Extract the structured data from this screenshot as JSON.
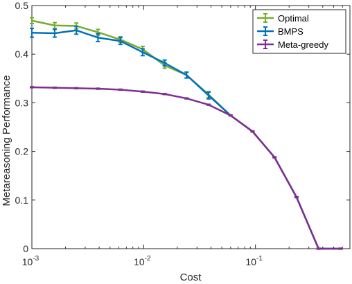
{
  "chart_data": {
    "type": "line",
    "title": "",
    "xlabel": "Cost",
    "ylabel": "Metareasoning Performance",
    "xscale": "log",
    "xlim": [
      0.001,
      0.7
    ],
    "ylim": [
      0,
      0.5
    ],
    "xticks": [
      {
        "value": 0.001,
        "base": "10",
        "exp": "-3"
      },
      {
        "value": 0.01,
        "base": "10",
        "exp": "-2"
      },
      {
        "value": 0.1,
        "base": "10",
        "exp": "-1"
      }
    ],
    "yticks": [
      {
        "value": 0,
        "label": "0"
      },
      {
        "value": 0.1,
        "label": "0.1"
      },
      {
        "value": 0.2,
        "label": "0.2"
      },
      {
        "value": 0.3,
        "label": "0.3"
      },
      {
        "value": 0.4,
        "label": "0.4"
      },
      {
        "value": 0.5,
        "label": "0.5"
      }
    ],
    "grid": false,
    "legend_position": "top-right",
    "series": [
      {
        "name": "Optimal",
        "color": "#77ac30",
        "x": [
          0.001,
          0.0016,
          0.0025,
          0.0039,
          0.0062,
          0.0098,
          0.0154,
          0.0242,
          0.0381,
          0.0599,
          0.0942,
          0.148,
          0.233,
          0.367,
          0.577
        ],
        "y": [
          0.469,
          0.459,
          0.458,
          0.445,
          0.43,
          0.41,
          0.377,
          0.357,
          0.317,
          0.274,
          0.241,
          0.188,
          0.106,
          0.0,
          0.0
        ],
        "err": [
          0.006,
          0.006,
          0.006,
          0.006,
          0.006,
          0.006,
          0.006,
          0.006,
          0.006,
          0,
          0,
          0,
          0,
          0,
          0
        ]
      },
      {
        "name": "BMPS",
        "color": "#0072bd",
        "x": [
          0.001,
          0.0016,
          0.0025,
          0.0039,
          0.0062,
          0.0098,
          0.0154,
          0.0242,
          0.0381,
          0.0599,
          0.0942,
          0.148,
          0.233,
          0.367,
          0.577
        ],
        "y": [
          0.444,
          0.443,
          0.449,
          0.434,
          0.427,
          0.404,
          0.382,
          0.357,
          0.315,
          0.274,
          0.241,
          0.188,
          0.106,
          0.0,
          0.0
        ],
        "err": [
          0.009,
          0.008,
          0.008,
          0.008,
          0.007,
          0.007,
          0.006,
          0.006,
          0.007,
          0,
          0,
          0,
          0,
          0,
          0
        ]
      },
      {
        "name": "Meta-greedy",
        "color": "#7e2f8e",
        "x": [
          0.001,
          0.0016,
          0.0025,
          0.0039,
          0.0062,
          0.0098,
          0.0154,
          0.0242,
          0.0381,
          0.0599,
          0.0942,
          0.148,
          0.233,
          0.367,
          0.577
        ],
        "y": [
          0.332,
          0.331,
          0.33,
          0.329,
          0.327,
          0.323,
          0.318,
          0.309,
          0.296,
          0.274,
          0.241,
          0.188,
          0.106,
          0.0,
          0.0
        ],
        "err": [
          0.001,
          0.001,
          0.001,
          0.001,
          0.001,
          0.001,
          0.001,
          0.001,
          0.001,
          0.001,
          0.001,
          0.001,
          0.001,
          0.001,
          0.001
        ]
      }
    ]
  }
}
